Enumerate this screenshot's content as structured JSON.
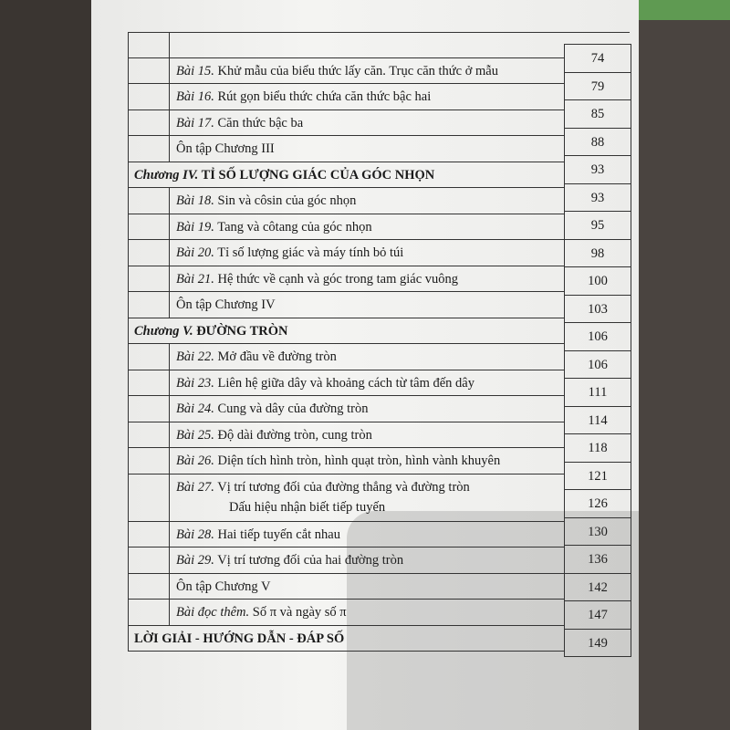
{
  "toc": {
    "rows": [
      {
        "lesson": "Bài 15.",
        "title": "Khử mẫu của biểu thức lấy căn. Trục căn thức ở mẫu"
      },
      {
        "lesson": "Bài 16.",
        "title": "Rút gọn biểu thức chứa căn thức bậc hai"
      },
      {
        "lesson": "Bài 17.",
        "title": "Căn thức bậc ba"
      },
      {
        "lesson": "",
        "title": "Ôn tập Chương III"
      },
      {
        "lesson": "Chương IV.",
        "title": "TỈ SỐ LƯỢNG GIÁC CỦA GÓC NHỌN",
        "chapter": true
      },
      {
        "lesson": "Bài 18.",
        "title": "Sin và côsin của góc nhọn"
      },
      {
        "lesson": "Bài 19.",
        "title": "Tang và côtang của góc nhọn"
      },
      {
        "lesson": "Bài 20.",
        "title": "Tỉ số lượng giác và máy tính bỏ túi"
      },
      {
        "lesson": "Bài 21.",
        "title": "Hệ thức về cạnh và góc trong tam giác vuông"
      },
      {
        "lesson": "",
        "title": "Ôn tập Chương IV"
      },
      {
        "lesson": "Chương V.",
        "title": "ĐƯỜNG TRÒN",
        "chapter": true
      },
      {
        "lesson": "Bài 22.",
        "title": "Mở đầu về đường tròn"
      },
      {
        "lesson": "Bài 23.",
        "title": "Liên hệ giữa dây và khoảng cách từ tâm đến dây"
      },
      {
        "lesson": "Bài 24.",
        "title": "Cung và dây của đường tròn"
      },
      {
        "lesson": "Bài 25.",
        "title": "Độ dài đường tròn, cung tròn"
      },
      {
        "lesson": "Bài 26.",
        "title": "Diện tích hình tròn, hình quạt tròn, hình vành khuyên"
      },
      {
        "lesson": "Bài 27.",
        "title": "Vị trí tương đối của đường thẳng và đường tròn",
        "title2": "Dấu hiệu nhận biết tiếp tuyến"
      },
      {
        "lesson": "Bài 28.",
        "title": "Hai tiếp tuyến cắt nhau"
      },
      {
        "lesson": "Bài 29.",
        "title": "Vị trí tương đối của hai đường tròn"
      },
      {
        "lesson": "",
        "title": "Ôn tập Chương V"
      },
      {
        "lesson": "Bài đọc thêm.",
        "title": "Số π và ngày số π"
      },
      {
        "lesson": "",
        "title": "LỜI GIẢI - HƯỚNG DẪN - ĐÁP SỐ",
        "chapter": true
      }
    ],
    "pages": [
      "74",
      "79",
      "85",
      "88",
      "93",
      "93",
      "95",
      "98",
      "100",
      "103",
      "106",
      "106",
      "111",
      "114",
      "118",
      "121",
      "126",
      "130",
      "136",
      "142",
      "147",
      "149"
    ]
  }
}
